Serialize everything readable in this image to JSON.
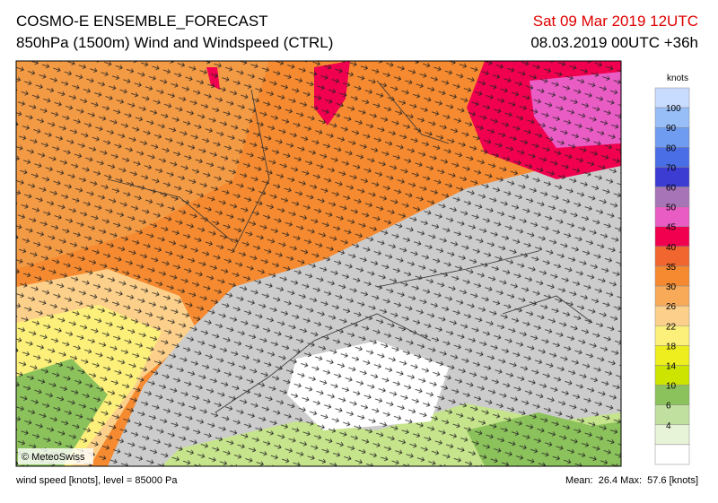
{
  "header": {
    "title": "COSMO-E ENSEMBLE_FORECAST",
    "subtitle": "850hPa (1500m) Wind and Windspeed (CTRL)",
    "valid_time": "Sat 09 Mar 2019 12UTC",
    "run_time": "08.03.2019 00UTC +36h"
  },
  "map": {
    "credit": "© MeteoSwiss"
  },
  "legend": {
    "unit": "knots",
    "labels": [
      "100",
      "90",
      "80",
      "70",
      "60",
      "50",
      "45",
      "40",
      "35",
      "30",
      "26",
      "22",
      "18",
      "14",
      "10",
      "6",
      "4"
    ],
    "colors": [
      "#c8dcff",
      "#98bef8",
      "#6f9cf0",
      "#4a6ee6",
      "#3c3cd2",
      "#a874b8",
      "#e85cc4",
      "#f0004e",
      "#f0662e",
      "#f58a30",
      "#f8aa58",
      "#fcd08a",
      "#fcf07a",
      "#eeee1e",
      "#cce400",
      "#8cc25c",
      "#c0e0a0",
      "#e8f4d8",
      "#ffffff"
    ]
  },
  "footer": {
    "left": "wind speed [knots], level = 85000 Pa",
    "right": "Mean:  26.4 Max:  57.6 [knots]"
  }
}
